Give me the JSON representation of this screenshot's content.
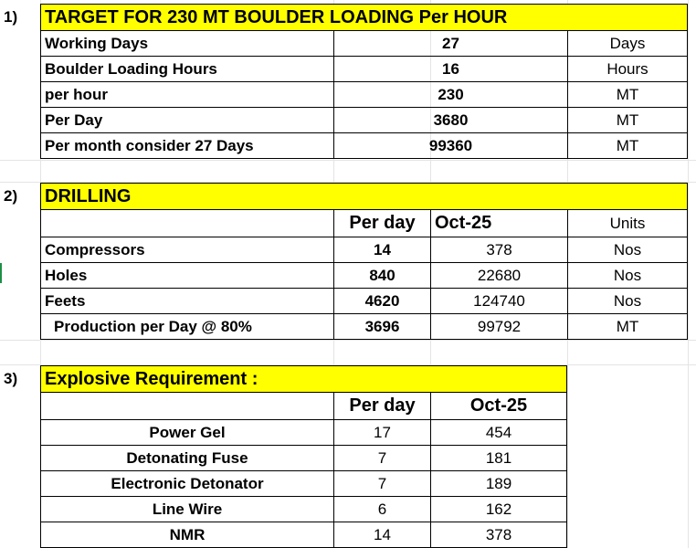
{
  "section1": {
    "index": "1)",
    "title": "TARGET FOR 230 MT  BOULDER LOADING Per HOUR",
    "rows": [
      {
        "label": "Working Days",
        "value": "27",
        "unit": "Days"
      },
      {
        "label": "Boulder Loading Hours",
        "value": "16",
        "unit": "Hours"
      },
      {
        "label": "per hour",
        "value": "230",
        "unit": "MT"
      },
      {
        "label": "Per Day",
        "value": "3680",
        "unit": "MT"
      },
      {
        "label": "Per month  consider 27 Days",
        "value": "99360",
        "unit": "MT"
      }
    ]
  },
  "section2": {
    "index": "2)",
    "title": "DRILLING",
    "header": {
      "per_day": "Per day",
      "month": "Oct-25",
      "units": "Units"
    },
    "rows": [
      {
        "label": "Compressors",
        "per_day": "14",
        "month": "378",
        "unit": "Nos"
      },
      {
        "label": "Holes",
        "per_day": "840",
        "month": "22680",
        "unit": "Nos"
      },
      {
        "label": "Feets",
        "per_day": "4620",
        "month": "124740",
        "unit": "Nos"
      },
      {
        "label": "Production per Day @ 80%",
        "per_day": "3696",
        "month": "99792",
        "unit": "MT"
      }
    ]
  },
  "section3": {
    "index": "3)",
    "title": "Explosive Requirement :",
    "header": {
      "per_day": "Per day",
      "month": "Oct-25"
    },
    "rows": [
      {
        "label": "Power Gel",
        "per_day": "17",
        "month": "454"
      },
      {
        "label": "Detonating Fuse",
        "per_day": "7",
        "month": "181"
      },
      {
        "label": "Electronic Detonator",
        "per_day": "7",
        "month": "189"
      },
      {
        "label": "Line Wire",
        "per_day": "6",
        "month": "162"
      },
      {
        "label": "NMR",
        "per_day": "14",
        "month": "378"
      }
    ]
  }
}
